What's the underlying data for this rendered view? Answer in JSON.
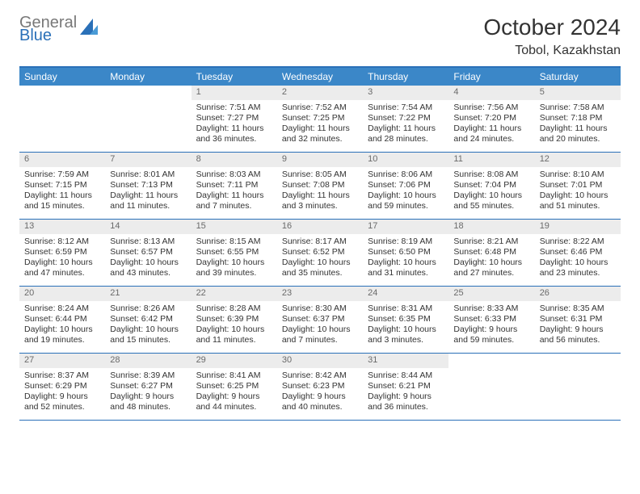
{
  "logo": {
    "top": "General",
    "bottom": "Blue"
  },
  "title": "October 2024",
  "location": "Tobol, Kazakhstan",
  "colors": {
    "header_bg": "#3b87c8",
    "border": "#2a70b8",
    "daynum_bg": "#ececec",
    "daynum_color": "#6a6a6a",
    "text": "#333333",
    "logo_gray": "#787878",
    "logo_blue": "#2a70b8"
  },
  "dayNames": [
    "Sunday",
    "Monday",
    "Tuesday",
    "Wednesday",
    "Thursday",
    "Friday",
    "Saturday"
  ],
  "weeks": [
    [
      {
        "n": "",
        "sr": "",
        "ss": "",
        "dl": ""
      },
      {
        "n": "",
        "sr": "",
        "ss": "",
        "dl": ""
      },
      {
        "n": "1",
        "sr": "Sunrise: 7:51 AM",
        "ss": "Sunset: 7:27 PM",
        "dl": "Daylight: 11 hours and 36 minutes."
      },
      {
        "n": "2",
        "sr": "Sunrise: 7:52 AM",
        "ss": "Sunset: 7:25 PM",
        "dl": "Daylight: 11 hours and 32 minutes."
      },
      {
        "n": "3",
        "sr": "Sunrise: 7:54 AM",
        "ss": "Sunset: 7:22 PM",
        "dl": "Daylight: 11 hours and 28 minutes."
      },
      {
        "n": "4",
        "sr": "Sunrise: 7:56 AM",
        "ss": "Sunset: 7:20 PM",
        "dl": "Daylight: 11 hours and 24 minutes."
      },
      {
        "n": "5",
        "sr": "Sunrise: 7:58 AM",
        "ss": "Sunset: 7:18 PM",
        "dl": "Daylight: 11 hours and 20 minutes."
      }
    ],
    [
      {
        "n": "6",
        "sr": "Sunrise: 7:59 AM",
        "ss": "Sunset: 7:15 PM",
        "dl": "Daylight: 11 hours and 15 minutes."
      },
      {
        "n": "7",
        "sr": "Sunrise: 8:01 AM",
        "ss": "Sunset: 7:13 PM",
        "dl": "Daylight: 11 hours and 11 minutes."
      },
      {
        "n": "8",
        "sr": "Sunrise: 8:03 AM",
        "ss": "Sunset: 7:11 PM",
        "dl": "Daylight: 11 hours and 7 minutes."
      },
      {
        "n": "9",
        "sr": "Sunrise: 8:05 AM",
        "ss": "Sunset: 7:08 PM",
        "dl": "Daylight: 11 hours and 3 minutes."
      },
      {
        "n": "10",
        "sr": "Sunrise: 8:06 AM",
        "ss": "Sunset: 7:06 PM",
        "dl": "Daylight: 10 hours and 59 minutes."
      },
      {
        "n": "11",
        "sr": "Sunrise: 8:08 AM",
        "ss": "Sunset: 7:04 PM",
        "dl": "Daylight: 10 hours and 55 minutes."
      },
      {
        "n": "12",
        "sr": "Sunrise: 8:10 AM",
        "ss": "Sunset: 7:01 PM",
        "dl": "Daylight: 10 hours and 51 minutes."
      }
    ],
    [
      {
        "n": "13",
        "sr": "Sunrise: 8:12 AM",
        "ss": "Sunset: 6:59 PM",
        "dl": "Daylight: 10 hours and 47 minutes."
      },
      {
        "n": "14",
        "sr": "Sunrise: 8:13 AM",
        "ss": "Sunset: 6:57 PM",
        "dl": "Daylight: 10 hours and 43 minutes."
      },
      {
        "n": "15",
        "sr": "Sunrise: 8:15 AM",
        "ss": "Sunset: 6:55 PM",
        "dl": "Daylight: 10 hours and 39 minutes."
      },
      {
        "n": "16",
        "sr": "Sunrise: 8:17 AM",
        "ss": "Sunset: 6:52 PM",
        "dl": "Daylight: 10 hours and 35 minutes."
      },
      {
        "n": "17",
        "sr": "Sunrise: 8:19 AM",
        "ss": "Sunset: 6:50 PM",
        "dl": "Daylight: 10 hours and 31 minutes."
      },
      {
        "n": "18",
        "sr": "Sunrise: 8:21 AM",
        "ss": "Sunset: 6:48 PM",
        "dl": "Daylight: 10 hours and 27 minutes."
      },
      {
        "n": "19",
        "sr": "Sunrise: 8:22 AM",
        "ss": "Sunset: 6:46 PM",
        "dl": "Daylight: 10 hours and 23 minutes."
      }
    ],
    [
      {
        "n": "20",
        "sr": "Sunrise: 8:24 AM",
        "ss": "Sunset: 6:44 PM",
        "dl": "Daylight: 10 hours and 19 minutes."
      },
      {
        "n": "21",
        "sr": "Sunrise: 8:26 AM",
        "ss": "Sunset: 6:42 PM",
        "dl": "Daylight: 10 hours and 15 minutes."
      },
      {
        "n": "22",
        "sr": "Sunrise: 8:28 AM",
        "ss": "Sunset: 6:39 PM",
        "dl": "Daylight: 10 hours and 11 minutes."
      },
      {
        "n": "23",
        "sr": "Sunrise: 8:30 AM",
        "ss": "Sunset: 6:37 PM",
        "dl": "Daylight: 10 hours and 7 minutes."
      },
      {
        "n": "24",
        "sr": "Sunrise: 8:31 AM",
        "ss": "Sunset: 6:35 PM",
        "dl": "Daylight: 10 hours and 3 minutes."
      },
      {
        "n": "25",
        "sr": "Sunrise: 8:33 AM",
        "ss": "Sunset: 6:33 PM",
        "dl": "Daylight: 9 hours and 59 minutes."
      },
      {
        "n": "26",
        "sr": "Sunrise: 8:35 AM",
        "ss": "Sunset: 6:31 PM",
        "dl": "Daylight: 9 hours and 56 minutes."
      }
    ],
    [
      {
        "n": "27",
        "sr": "Sunrise: 8:37 AM",
        "ss": "Sunset: 6:29 PM",
        "dl": "Daylight: 9 hours and 52 minutes."
      },
      {
        "n": "28",
        "sr": "Sunrise: 8:39 AM",
        "ss": "Sunset: 6:27 PM",
        "dl": "Daylight: 9 hours and 48 minutes."
      },
      {
        "n": "29",
        "sr": "Sunrise: 8:41 AM",
        "ss": "Sunset: 6:25 PM",
        "dl": "Daylight: 9 hours and 44 minutes."
      },
      {
        "n": "30",
        "sr": "Sunrise: 8:42 AM",
        "ss": "Sunset: 6:23 PM",
        "dl": "Daylight: 9 hours and 40 minutes."
      },
      {
        "n": "31",
        "sr": "Sunrise: 8:44 AM",
        "ss": "Sunset: 6:21 PM",
        "dl": "Daylight: 9 hours and 36 minutes."
      },
      {
        "n": "",
        "sr": "",
        "ss": "",
        "dl": ""
      },
      {
        "n": "",
        "sr": "",
        "ss": "",
        "dl": ""
      }
    ]
  ]
}
